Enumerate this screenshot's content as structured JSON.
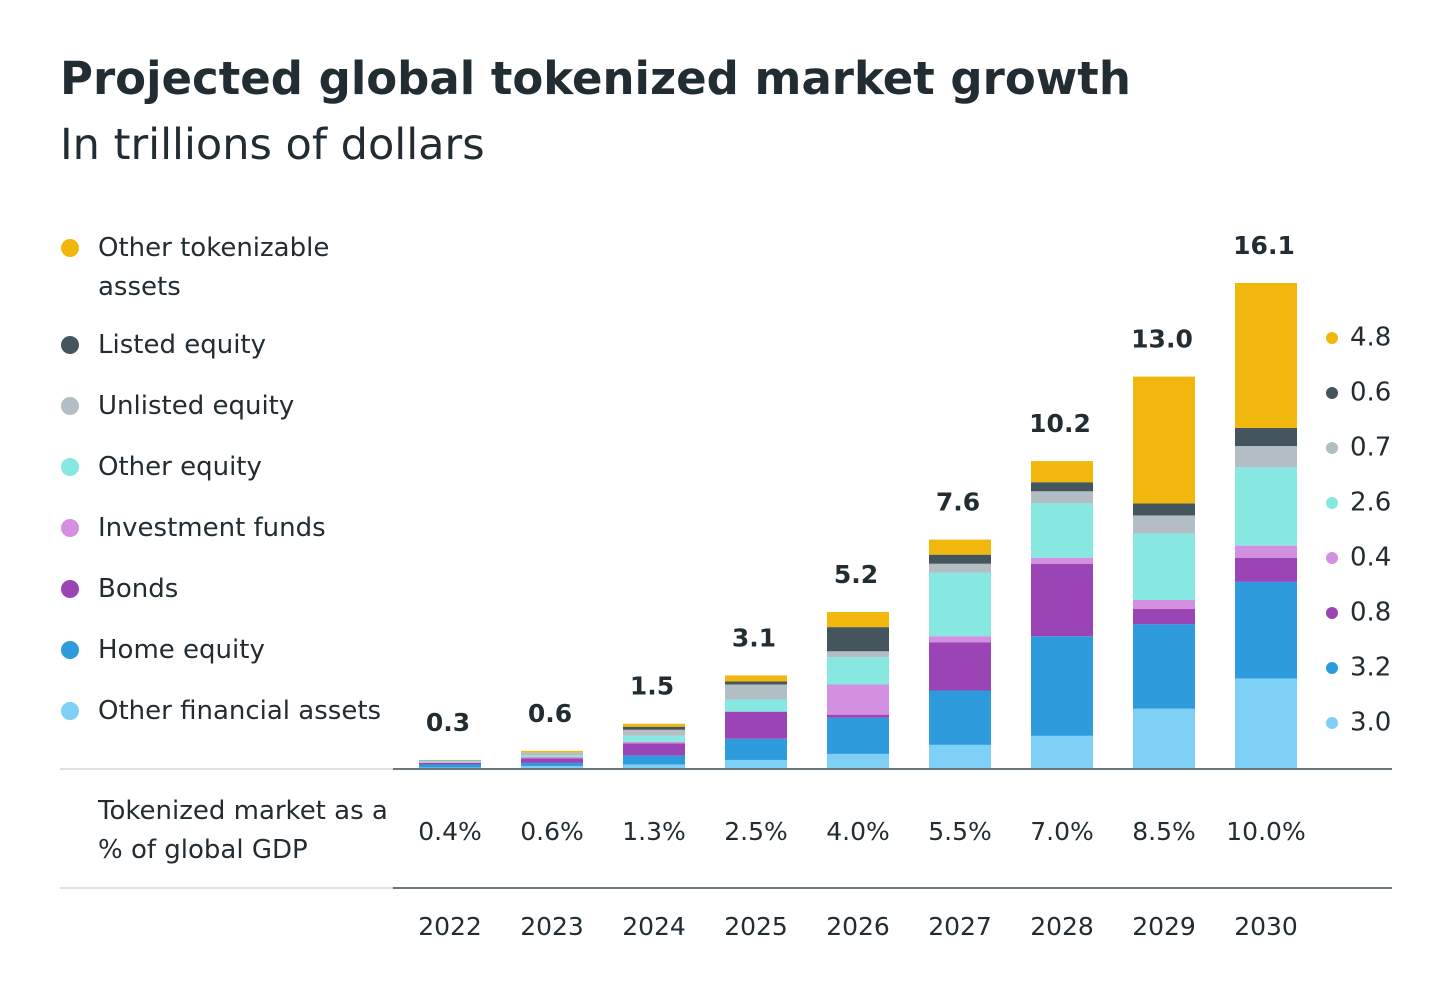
{
  "chart_data": {
    "type": "stacked_bar",
    "title": "Projected global tokenized market growth",
    "subtitle": "In trillions of dollars",
    "categories": [
      "2022",
      "2023",
      "2024",
      "2025",
      "2026",
      "2027",
      "2028",
      "2029",
      "2030"
    ],
    "ylim": [
      0,
      16.1
    ],
    "series": [
      {
        "name": "Other financial assets",
        "color": "#7fd0f7",
        "values": [
          0.05,
          0.1,
          0.15,
          0.3,
          0.5,
          0.8,
          1.1,
          2.0,
          3.0
        ],
        "value_labels": [
          null,
          null,
          null,
          null,
          null,
          null,
          null,
          null,
          "3.0"
        ]
      },
      {
        "name": "Home equity",
        "color": "#2d9bdc",
        "values": [
          0.1,
          0.1,
          0.3,
          0.7,
          1.2,
          1.8,
          3.3,
          2.8,
          3.2
        ],
        "value_labels": [
          null,
          null,
          null,
          null,
          null,
          null,
          null,
          null,
          "3.2"
        ]
      },
      {
        "name": "Bonds",
        "color": "#9b44b5",
        "values": [
          0.05,
          0.15,
          0.4,
          0.9,
          0.1,
          1.6,
          2.4,
          0.5,
          0.8
        ],
        "value_labels": [
          null,
          null,
          null,
          null,
          null,
          null,
          null,
          null,
          "0.8"
        ]
      },
      {
        "name": "Investment funds",
        "color": "#d38fe0",
        "values": [
          0.02,
          0.05,
          0.05,
          0.0,
          1.0,
          0.2,
          0.2,
          0.3,
          0.4
        ],
        "value_labels": [
          null,
          null,
          null,
          null,
          null,
          null,
          null,
          null,
          "0.4"
        ]
      },
      {
        "name": "Other equity",
        "color": "#86e8e0",
        "values": [
          0.03,
          0.05,
          0.2,
          0.4,
          0.9,
          2.1,
          1.8,
          2.2,
          2.6
        ],
        "value_labels": [
          null,
          null,
          null,
          null,
          null,
          null,
          null,
          null,
          "2.6"
        ]
      },
      {
        "name": "Unlisted equity",
        "color": "#b3bec4",
        "values": [
          0.03,
          0.1,
          0.2,
          0.5,
          0.2,
          0.3,
          0.4,
          0.6,
          0.7
        ],
        "value_labels": [
          null,
          null,
          null,
          null,
          null,
          null,
          null,
          null,
          "0.7"
        ]
      },
      {
        "name": "Listed equity",
        "color": "#44555e",
        "values": [
          0.01,
          0.0,
          0.1,
          0.1,
          0.8,
          0.3,
          0.3,
          0.4,
          0.6
        ],
        "value_labels": [
          null,
          null,
          null,
          null,
          null,
          null,
          null,
          null,
          "0.6"
        ]
      },
      {
        "name": "Other tokenizable assets",
        "color": "#f2b70d",
        "values": [
          0.01,
          0.05,
          0.1,
          0.2,
          0.5,
          0.5,
          0.7,
          4.2,
          4.8
        ],
        "value_labels": [
          null,
          null,
          null,
          null,
          null,
          null,
          null,
          null,
          "4.8"
        ]
      }
    ],
    "totals": [
      0.3,
      0.6,
      1.5,
      3.1,
      5.2,
      7.6,
      10.2,
      13.0,
      16.1
    ],
    "total_labels": [
      "0.3",
      "0.6",
      "1.5",
      "3.1",
      "5.2",
      "7.6",
      "10.2",
      "13.0",
      "16.1"
    ],
    "gdp_label": "Tokenized market as a % of global GDP",
    "gdp_share": [
      0.4,
      0.6,
      1.3,
      2.5,
      4.0,
      5.5,
      7.0,
      8.5,
      10.0
    ],
    "gdp_share_labels": [
      "0.4%",
      "0.6%",
      "1.3%",
      "2.5%",
      "4.0%",
      "5.5%",
      "7.0%",
      "8.5%",
      "10.0%"
    ]
  }
}
